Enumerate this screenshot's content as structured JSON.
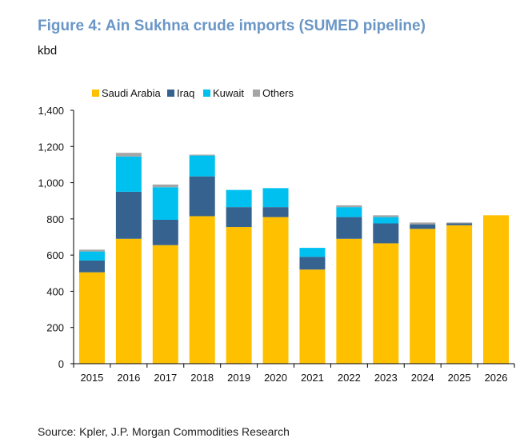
{
  "title": "Figure 4: Ain Sukhna crude imports (SUMED pipeline)",
  "unit_label": "kbd",
  "source": "Source: Kpler, J.P. Morgan Commodities Research",
  "chart_data": {
    "type": "bar",
    "stacked": true,
    "categories": [
      "2015",
      "2016",
      "2017",
      "2018",
      "2019",
      "2020",
      "2021",
      "2022",
      "2023",
      "2024",
      "2025",
      "2026"
    ],
    "series": [
      {
        "name": "Saudi Arabia",
        "color": "#ffc000",
        "values": [
          505,
          690,
          655,
          815,
          755,
          810,
          520,
          690,
          665,
          745,
          765,
          820
        ]
      },
      {
        "name": "Iraq",
        "color": "#35628e",
        "values": [
          65,
          260,
          140,
          220,
          110,
          55,
          70,
          120,
          110,
          25,
          10,
          0
        ]
      },
      {
        "name": "Kuwait",
        "color": "#00c0f0",
        "values": [
          50,
          195,
          180,
          115,
          95,
          105,
          50,
          55,
          35,
          0,
          0,
          0
        ]
      },
      {
        "name": "Others",
        "color": "#a5a5a5",
        "values": [
          10,
          20,
          15,
          5,
          0,
          0,
          0,
          10,
          10,
          10,
          5,
          0
        ]
      }
    ],
    "yticks": [
      "0",
      "200",
      "400",
      "600",
      "800",
      "1,000",
      "1,200",
      "1,400"
    ],
    "ylim": [
      0,
      1400
    ],
    "xlabel": "",
    "ylabel": "kbd",
    "legend_position": "top-left",
    "grid": false
  }
}
